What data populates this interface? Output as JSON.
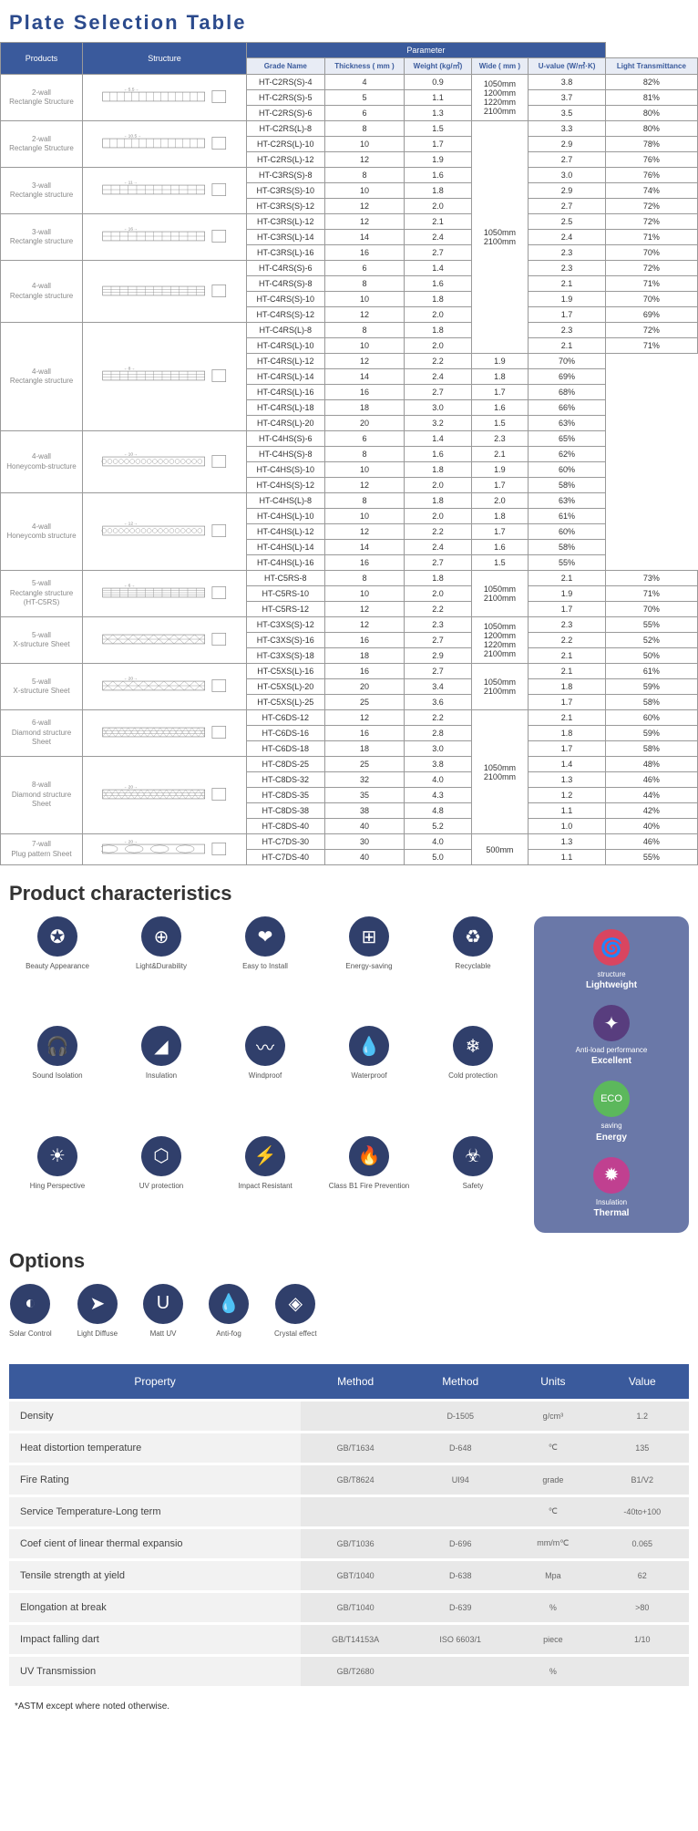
{
  "titles": {
    "plate": "Plate Selection Table",
    "chars": "Product characteristics",
    "opts": "Options"
  },
  "headers": {
    "products": "Products",
    "structure": "Structure",
    "parameter": "Parameter",
    "grade": "Grade Name",
    "thickness": "Thickness\n( mm )",
    "weight": "Weight\n(kg/㎡)",
    "wide": "Wide\n( mm )",
    "uvalue": "U-value\n(W/㎡·K)",
    "light": "Light Transmittance"
  },
  "colors": {
    "hdr": "#3a5a9c",
    "sub": "#e8ecf5",
    "icon": "#303f6b",
    "side": "#6a78a8"
  },
  "groups": [
    {
      "product": "2-wall\nRectangle Structure",
      "dim": "5.5",
      "svg": "rect2",
      "wide": "1050mm\n1200mm\n1220mm\n2100mm",
      "rows": [
        [
          "HT-C2RS(S)-4",
          "4",
          "0.9",
          "3.8",
          "82%"
        ],
        [
          "HT-C2RS(S)-5",
          "5",
          "1.1",
          "3.7",
          "81%"
        ],
        [
          "HT-C2RS(S)-6",
          "6",
          "1.3",
          "3.5",
          "80%"
        ]
      ]
    },
    {
      "product": "2-wall\nRectangle Structure",
      "dim": "10.5",
      "svg": "rect2",
      "wide": "1050mm\n2100mm",
      "widespan": 15,
      "rows": [
        [
          "HT-C2RS(L)-8",
          "8",
          "1.5",
          "3.3",
          "80%"
        ],
        [
          "HT-C2RS(L)-10",
          "10",
          "1.7",
          "2.9",
          "78%"
        ],
        [
          "HT-C2RS(L)-12",
          "12",
          "1.9",
          "2.7",
          "76%"
        ]
      ]
    },
    {
      "product": "3-wall\nRectangle structure",
      "dim": "11",
      "svg": "rect3",
      "rows": [
        [
          "HT-C3RS(S)-8",
          "8",
          "1.6",
          "3.0",
          "76%"
        ],
        [
          "HT-C3RS(S)-10",
          "10",
          "1.8",
          "2.9",
          "74%"
        ],
        [
          "HT-C3RS(S)-12",
          "12",
          "2.0",
          "2.7",
          "72%"
        ]
      ]
    },
    {
      "product": "3-wall\nRectangle structure",
      "dim": "16",
      "svg": "rect3",
      "rows": [
        [
          "HT-C3RS(L)-12",
          "12",
          "2.1",
          "2.5",
          "72%"
        ],
        [
          "HT-C3RS(L)-14",
          "14",
          "2.4",
          "2.4",
          "71%"
        ],
        [
          "HT-C3RS(L)-16",
          "16",
          "2.7",
          "2.3",
          "70%"
        ]
      ]
    },
    {
      "product": "4-wall\nRectangle structure",
      "dim": "",
      "svg": "rect4",
      "rows": [
        [
          "HT-C4RS(S)-6",
          "6",
          "1.4",
          "2.3",
          "72%"
        ],
        [
          "HT-C4RS(S)-8",
          "8",
          "1.6",
          "2.1",
          "71%"
        ],
        [
          "HT-C4RS(S)-10",
          "10",
          "1.8",
          "1.9",
          "70%"
        ],
        [
          "HT-C4RS(S)-12",
          "12",
          "2.0",
          "1.7",
          "69%"
        ]
      ]
    },
    {
      "product": "4-wall\nRectangle structure",
      "dim": "8",
      "svg": "rect4",
      "rows": [
        [
          "HT-C4RS(L)-8",
          "8",
          "1.8",
          "2.3",
          "72%"
        ],
        [
          "HT-C4RS(L)-10",
          "10",
          "2.0",
          "2.1",
          "71%"
        ],
        [
          "HT-C4RS(L)-12",
          "12",
          "2.2",
          "1.9",
          "70%"
        ],
        [
          "HT-C4RS(L)-14",
          "14",
          "2.4",
          "1.8",
          "69%"
        ],
        [
          "HT-C4RS(L)-16",
          "16",
          "2.7",
          "1.7",
          "68%"
        ],
        [
          "HT-C4RS(L)-18",
          "18",
          "3.0",
          "1.6",
          "66%"
        ],
        [
          "HT-C4RS(L)-20",
          "20",
          "3.2",
          "1.5",
          "63%"
        ]
      ]
    },
    {
      "product": "4-wall\nHoneycomb-structure",
      "dim": "10",
      "svg": "honey",
      "rows": [
        [
          "HT-C4HS(S)-6",
          "6",
          "1.4",
          "2.3",
          "65%"
        ],
        [
          "HT-C4HS(S)-8",
          "8",
          "1.6",
          "2.1",
          "62%"
        ],
        [
          "HT-C4HS(S)-10",
          "10",
          "1.8",
          "1.9",
          "60%"
        ],
        [
          "HT-C4HS(S)-12",
          "12",
          "2.0",
          "1.7",
          "58%"
        ]
      ]
    },
    {
      "product": "4-wall\nHoneycomb structure",
      "dim": "12",
      "svg": "honey",
      "rows": [
        [
          "HT-C4HS(L)-8",
          "8",
          "1.8",
          "2.0",
          "63%"
        ],
        [
          "HT-C4HS(L)-10",
          "10",
          "2.0",
          "1.8",
          "61%"
        ],
        [
          "HT-C4HS(L)-12",
          "12",
          "2.2",
          "1.7",
          "60%"
        ],
        [
          "HT-C4HS(L)-14",
          "14",
          "2.4",
          "1.6",
          "58%"
        ],
        [
          "HT-C4HS(L)-16",
          "16",
          "2.7",
          "1.5",
          "55%"
        ]
      ]
    },
    {
      "product": "5-wall\nRectangle structure\n(HT-C5RS)",
      "dim": "6",
      "svg": "rect5",
      "wide": "1050mm\n2100mm",
      "widespan": 3,
      "rows": [
        [
          "HT-C5RS-8",
          "8",
          "1.8",
          "2.1",
          "73%"
        ],
        [
          "HT-C5RS-10",
          "10",
          "2.0",
          "1.9",
          "71%"
        ],
        [
          "HT-C5RS-12",
          "12",
          "2.2",
          "1.7",
          "70%"
        ]
      ]
    },
    {
      "product": "5-wall\nX-structure Sheet",
      "dim": "",
      "svg": "x5",
      "wide": "1050mm\n1200mm\n1220mm\n2100mm",
      "widespan": 3,
      "rows": [
        [
          "HT-C3XS(S)-12",
          "12",
          "2.3",
          "2.3",
          "55%"
        ],
        [
          "HT-C3XS(S)-16",
          "16",
          "2.7",
          "2.2",
          "52%"
        ],
        [
          "HT-C3XS(S)-18",
          "18",
          "2.9",
          "2.1",
          "50%"
        ]
      ]
    },
    {
      "product": "5-wall\nX-structure Sheet",
      "dim": "20",
      "svg": "x5",
      "wide": "1050mm\n2100mm",
      "widespan": 3,
      "rows": [
        [
          "HT-C5XS(L)-16",
          "16",
          "2.7",
          "2.1",
          "61%"
        ],
        [
          "HT-C5XS(L)-20",
          "20",
          "3.4",
          "1.8",
          "59%"
        ],
        [
          "HT-C5XS(L)-25",
          "25",
          "3.6",
          "1.7",
          "58%"
        ]
      ]
    },
    {
      "product": "6-wall\nDiamond structure Sheet",
      "dim": "",
      "svg": "diamond",
      "wide": "1050mm\n2100mm",
      "widespan": 8,
      "rows": [
        [
          "HT-C6DS-12",
          "12",
          "2.2",
          "2.1",
          "60%"
        ],
        [
          "HT-C6DS-16",
          "16",
          "2.8",
          "1.8",
          "59%"
        ],
        [
          "HT-C6DS-18",
          "18",
          "3.0",
          "1.7",
          "58%"
        ]
      ]
    },
    {
      "product": "8-wall\nDiamond structure Sheet",
      "dim": "20",
      "svg": "diamond",
      "rows": [
        [
          "HT-C8DS-25",
          "25",
          "3.8",
          "1.4",
          "48%"
        ],
        [
          "HT-C8DS-32",
          "32",
          "4.0",
          "1.3",
          "46%"
        ],
        [
          "HT-C8DS-35",
          "35",
          "4.3",
          "1.2",
          "44%"
        ],
        [
          "HT-C8DS-38",
          "38",
          "4.8",
          "1.1",
          "42%"
        ],
        [
          "HT-C8DS-40",
          "40",
          "5.2",
          "1.0",
          "40%"
        ]
      ]
    },
    {
      "product": "7-wall\nPlug pattern Sheet",
      "dim": "20",
      "svg": "plug",
      "wide": "500mm",
      "widespan": 2,
      "rows": [
        [
          "HT-C7DS-30",
          "30",
          "4.0",
          "1.3",
          "46%"
        ],
        [
          "HT-C7DS-40",
          "40",
          "5.0",
          "1.1",
          "55%"
        ]
      ]
    }
  ],
  "characteristics": [
    {
      "label": "Beauty Appearance",
      "icon": "✪"
    },
    {
      "label": "Light&Durability",
      "icon": "⊕"
    },
    {
      "label": "Easy to Install",
      "icon": "❤"
    },
    {
      "label": "Energy-saving",
      "icon": "⊞"
    },
    {
      "label": "Recyclable",
      "icon": "♻"
    },
    {
      "label": "Sound Isolation",
      "icon": "🎧"
    },
    {
      "label": "Insulation",
      "icon": "◢"
    },
    {
      "label": "Windproof",
      "icon": "〰"
    },
    {
      "label": "Waterproof",
      "icon": "💧"
    },
    {
      "label": "Cold protection",
      "icon": "❄"
    },
    {
      "label": "Hing Perspective",
      "icon": "☀"
    },
    {
      "label": "UV protection",
      "icon": "⬡"
    },
    {
      "label": "Impact Resistant",
      "icon": "⚡"
    },
    {
      "label": "Class B1 Fire Prevention",
      "icon": "🔥"
    },
    {
      "label": "Safety",
      "icon": "☣"
    }
  ],
  "sideItems": [
    {
      "pre": "structure",
      "label": "Lightweight",
      "icon": "🌀",
      "color": "#d94560"
    },
    {
      "pre": "Anti-load performance",
      "label": "Excellent",
      "icon": "✦",
      "color": "#583d7e"
    },
    {
      "pre": "saving",
      "label": "Energy",
      "icon": "ECO",
      "color": "#5cb85c",
      "fontsize": "11px"
    },
    {
      "pre": "Insulation",
      "label": "Thermal",
      "icon": "✹",
      "color": "#c04090"
    }
  ],
  "options": [
    {
      "label": "Solar Control",
      "icon": "◐"
    },
    {
      "label": "Light Diffuse",
      "icon": "➤"
    },
    {
      "label": "Matt UV",
      "icon": "U"
    },
    {
      "label": "Anti-fog",
      "icon": "💧"
    },
    {
      "label": "Crystal effect",
      "icon": "◈"
    }
  ],
  "propHeaders": [
    "Property",
    "Method",
    "Method",
    "Units",
    "Value"
  ],
  "properties": [
    [
      "Density",
      "",
      "D-1505",
      "g/cm³",
      "1.2"
    ],
    [
      "Heat distortion temperature",
      "GB/T1634",
      "D-648",
      "℃",
      "135"
    ],
    [
      "Fire Rating",
      "GB/T8624",
      "UI94",
      "grade",
      "B1/V2"
    ],
    [
      "Service Temperature-Long term",
      "",
      "",
      "℃",
      "-40to+100"
    ],
    [
      "Coef cient of linear thermal expansio",
      "GB/T1036",
      "D-696",
      "mm/m℃",
      "0.065"
    ],
    [
      "Tensile strength at yield",
      "GBT/1040",
      "D-638",
      "Mpa",
      "62"
    ],
    [
      "Elongation at break",
      "GB/T1040",
      "D-639",
      "%",
      ">80"
    ],
    [
      "Impact falling dart",
      "GB/T14153A",
      "ISO 6603/1",
      "piece",
      "1/10"
    ],
    [
      "UV Transmission",
      "GB/T2680",
      "",
      "%",
      ""
    ]
  ],
  "footnote": "*ASTM except where noted otherwise."
}
